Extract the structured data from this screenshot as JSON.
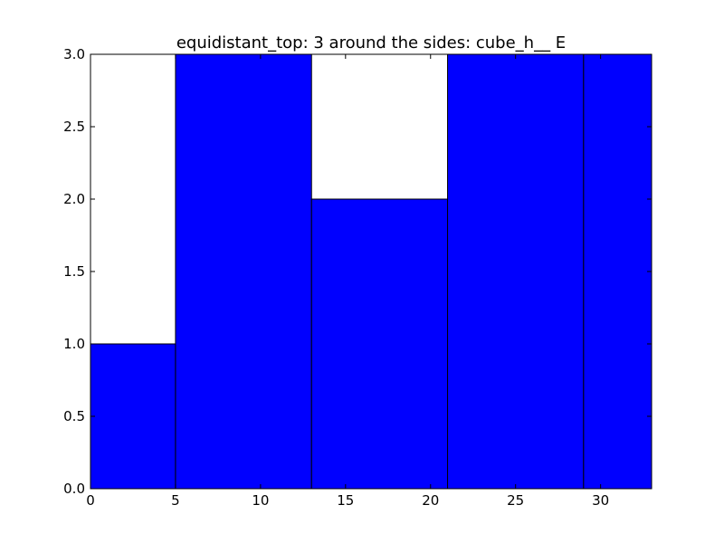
{
  "chart_data": {
    "type": "bar",
    "title": "equidistant_top: 3 around the sides: cube_h__ E",
    "xlabel": "",
    "ylabel": "",
    "xlim": [
      0,
      33
    ],
    "ylim": [
      0,
      3.0
    ],
    "x_ticks": [
      "0",
      "5",
      "10",
      "15",
      "20",
      "25",
      "30"
    ],
    "y_ticks": [
      "0.0",
      "0.5",
      "1.0",
      "1.5",
      "2.0",
      "2.5",
      "3.0"
    ],
    "bins": [
      {
        "left": 0,
        "right": 5,
        "value": 1
      },
      {
        "left": 5,
        "right": 13,
        "value": 3
      },
      {
        "left": 13,
        "right": 21,
        "value": 2
      },
      {
        "left": 21,
        "right": 29,
        "value": 3
      },
      {
        "left": 29,
        "right": 33,
        "value": 3
      }
    ],
    "bar_color": "#0000ff",
    "edge_color": "#000000",
    "grid": false,
    "legend": "none"
  }
}
